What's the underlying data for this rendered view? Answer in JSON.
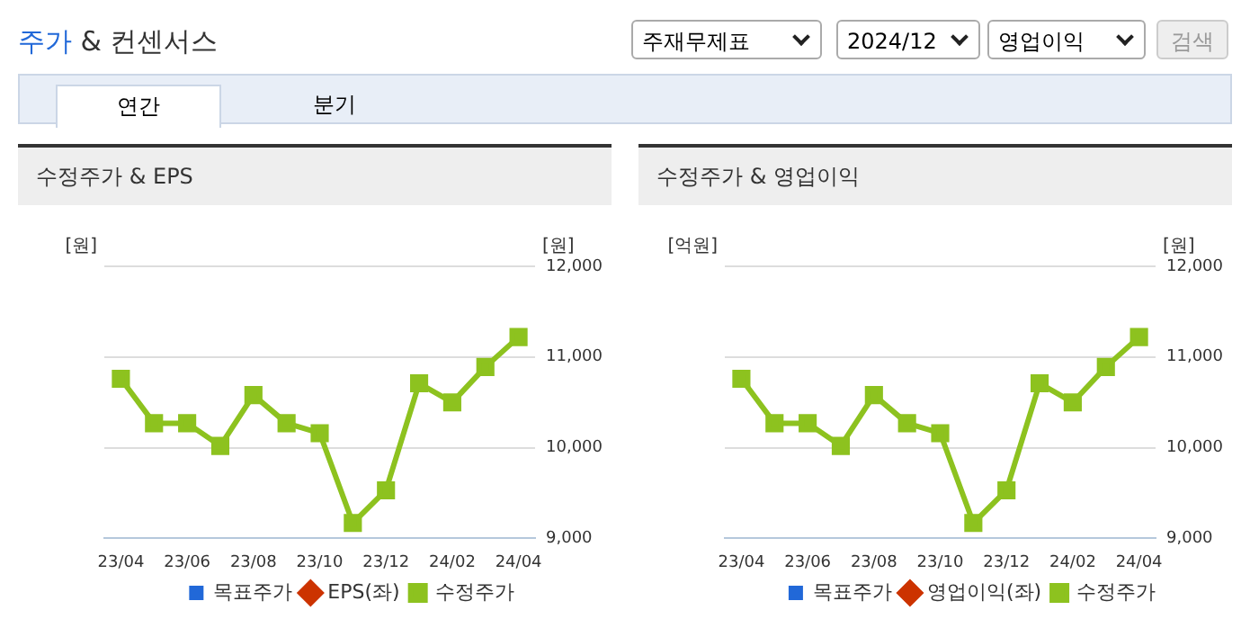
{
  "chart_data": [
    {
      "type": "line",
      "title": "수정주가 & EPS",
      "annotations": [
        "주가 & 컨센서스",
        "주재무제표",
        "2024/12",
        "영업이익",
        "검색",
        "연간",
        "분기"
      ],
      "categories": [
        "23/04",
        null,
        "23/06",
        null,
        "23/08",
        null,
        "23/10",
        null,
        "23/12",
        null,
        "24/02",
        null,
        "24/04"
      ],
      "ylabel": "[원]",
      "y2label": "[원]",
      "series": [
        {
          "name": "목표주가",
          "type": "bar",
          "color": "#2168d8",
          "values": [
            null,
            null,
            null,
            null,
            null,
            null,
            null,
            null,
            null,
            null,
            null,
            null,
            null
          ]
        },
        {
          "name": "EPS(좌)",
          "color": "#cc3300",
          "marker": "diamond",
          "values": [
            null,
            null,
            null,
            null,
            null,
            null,
            null,
            null,
            null,
            null,
            null,
            null,
            null
          ]
        },
        {
          "name": "수정주가",
          "color": "#8dc21f",
          "axis": "y2",
          "marker": "square",
          "values": [
            10760,
            10270,
            10270,
            10020,
            10580,
            10270,
            10160,
            9170,
            9530,
            10710,
            10500,
            10890,
            11220
          ]
        }
      ],
      "y2lim": [
        9000,
        12000
      ],
      "y2ticks": [
        {
          "value": 9000,
          "label": "9,000"
        },
        {
          "value": 10000,
          "label": "10,000"
        },
        {
          "value": 11000,
          "label": "11,000"
        },
        {
          "value": 12000,
          "label": "12,000"
        }
      ],
      "grid": "y",
      "legend": "bottom",
      "line_style": "solid"
    },
    {
      "type": "line",
      "title": "수정주가 & 영업이익",
      "categories": [
        "23/04",
        null,
        "23/06",
        null,
        "23/08",
        null,
        "23/10",
        null,
        "23/12",
        null,
        "24/02",
        null,
        "24/04"
      ],
      "ylabel": "[억원]",
      "y2label": "[원]",
      "series": [
        {
          "name": "목표주가",
          "type": "bar",
          "color": "#2168d8",
          "values": [
            null,
            null,
            null,
            null,
            null,
            null,
            null,
            null,
            null,
            null,
            null,
            null,
            null
          ]
        },
        {
          "name": "영업이익(좌)",
          "color": "#cc3300",
          "marker": "diamond",
          "values": [
            null,
            null,
            null,
            null,
            null,
            null,
            null,
            null,
            null,
            null,
            null,
            null,
            null
          ]
        },
        {
          "name": "수정주가",
          "color": "#8dc21f",
          "axis": "y2",
          "marker": "square",
          "values": [
            10760,
            10270,
            10270,
            10020,
            10580,
            10270,
            10160,
            9170,
            9530,
            10710,
            10500,
            10890,
            11220
          ]
        }
      ],
      "y2lim": [
        9000,
        12000
      ],
      "y2ticks": [
        {
          "value": 9000,
          "label": "9,000"
        },
        {
          "value": 10000,
          "label": "10,000"
        },
        {
          "value": 11000,
          "label": "11,000"
        },
        {
          "value": 12000,
          "label": "12,000"
        }
      ],
      "grid": "y",
      "legend": "bottom",
      "line_style": "solid"
    }
  ]
}
